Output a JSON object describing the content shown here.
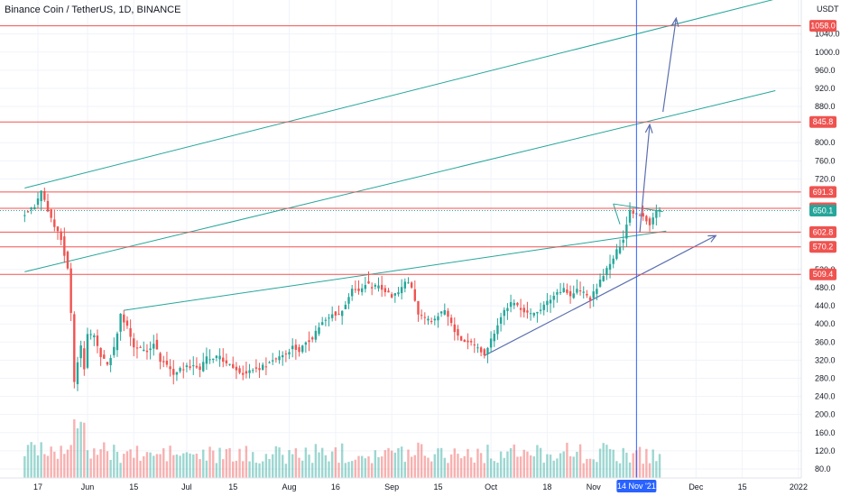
{
  "chart_data": {
    "type": "candlestick",
    "title": "Binance Coin / TetherUS, 1D, BINANCE",
    "yaxis_unit": "USDT",
    "ylim": [
      60,
      1115
    ],
    "price_ticks": [
      1040,
      1000,
      960,
      920,
      880,
      800,
      760,
      720,
      520,
      480,
      440,
      400,
      360,
      320,
      280,
      240,
      200,
      160,
      120,
      80
    ],
    "x_ticks": [
      {
        "day": 0,
        "label": "17"
      },
      {
        "day": 15,
        "label": "Jun"
      },
      {
        "day": 29,
        "label": "15"
      },
      {
        "day": 45,
        "label": "Jul"
      },
      {
        "day": 59,
        "label": "15"
      },
      {
        "day": 76,
        "label": "Aug"
      },
      {
        "day": 90,
        "label": "16"
      },
      {
        "day": 107,
        "label": "Sep"
      },
      {
        "day": 121,
        "label": "15"
      },
      {
        "day": 137,
        "label": "Oct"
      },
      {
        "day": 154,
        "label": "18"
      },
      {
        "day": 168,
        "label": "Nov"
      },
      {
        "day": 199,
        "label": "Dec"
      },
      {
        "day": 213,
        "label": "15"
      },
      {
        "day": 230,
        "label": "2022"
      }
    ],
    "current_date_label": "14 Nov '21",
    "current_day": 181,
    "horizontal_levels": [
      {
        "value": 1058.0,
        "label": "1058.0"
      },
      {
        "value": 845.8,
        "label": "845.8"
      },
      {
        "value": 691.3,
        "label": "691.3"
      },
      {
        "value": 655.1,
        "label": "655.1"
      },
      {
        "value": 602.8,
        "label": "602.8"
      },
      {
        "value": 570.2,
        "label": "570.2"
      },
      {
        "value": 509.4,
        "label": "509.4"
      }
    ],
    "last_price": {
      "value": 650.1,
      "label": "650.1"
    },
    "last_price_color": "#26a69a",
    "colors": {
      "up": "#26a69a",
      "down": "#ef5350",
      "level": "#ef5350",
      "trend": "#26a69a",
      "arrow": "#5b6fae",
      "vline": "#2962ff"
    },
    "price_anchors": [
      [
        -4,
        640
      ],
      [
        -2,
        650
      ],
      [
        0,
        660
      ],
      [
        2,
        690
      ],
      [
        4,
        650
      ],
      [
        6,
        610
      ],
      [
        8,
        590
      ],
      [
        10,
        520
      ],
      [
        11,
        420
      ],
      [
        12,
        270
      ],
      [
        13,
        320
      ],
      [
        14,
        350
      ],
      [
        15,
        300
      ],
      [
        16,
        380
      ],
      [
        18,
        370
      ],
      [
        20,
        330
      ],
      [
        22,
        310
      ],
      [
        24,
        345
      ],
      [
        26,
        420
      ],
      [
        28,
        395
      ],
      [
        30,
        350
      ],
      [
        32,
        345
      ],
      [
        34,
        340
      ],
      [
        36,
        360
      ],
      [
        38,
        320
      ],
      [
        40,
        310
      ],
      [
        42,
        290
      ],
      [
        44,
        300
      ],
      [
        46,
        305
      ],
      [
        48,
        310
      ],
      [
        50,
        300
      ],
      [
        52,
        325
      ],
      [
        54,
        320
      ],
      [
        56,
        330
      ],
      [
        58,
        310
      ],
      [
        60,
        305
      ],
      [
        62,
        295
      ],
      [
        64,
        290
      ],
      [
        66,
        300
      ],
      [
        68,
        302
      ],
      [
        70,
        310
      ],
      [
        72,
        320
      ],
      [
        74,
        330
      ],
      [
        76,
        335
      ],
      [
        78,
        350
      ],
      [
        80,
        340
      ],
      [
        82,
        360
      ],
      [
        84,
        370
      ],
      [
        86,
        395
      ],
      [
        88,
        410
      ],
      [
        90,
        425
      ],
      [
        92,
        420
      ],
      [
        94,
        440
      ],
      [
        96,
        480
      ],
      [
        98,
        470
      ],
      [
        100,
        490
      ],
      [
        102,
        480
      ],
      [
        104,
        485
      ],
      [
        106,
        475
      ],
      [
        108,
        460
      ],
      [
        110,
        470
      ],
      [
        112,
        495
      ],
      [
        114,
        480
      ],
      [
        116,
        420
      ],
      [
        118,
        410
      ],
      [
        120,
        405
      ],
      [
        122,
        420
      ],
      [
        124,
        430
      ],
      [
        126,
        400
      ],
      [
        128,
        370
      ],
      [
        130,
        360
      ],
      [
        132,
        355
      ],
      [
        134,
        345
      ],
      [
        136,
        335
      ],
      [
        138,
        365
      ],
      [
        140,
        400
      ],
      [
        142,
        430
      ],
      [
        144,
        445
      ],
      [
        146,
        440
      ],
      [
        148,
        430
      ],
      [
        150,
        420
      ],
      [
        152,
        430
      ],
      [
        154,
        440
      ],
      [
        156,
        455
      ],
      [
        158,
        470
      ],
      [
        160,
        480
      ],
      [
        162,
        460
      ],
      [
        164,
        475
      ],
      [
        166,
        470
      ],
      [
        168,
        455
      ],
      [
        170,
        480
      ],
      [
        172,
        510
      ],
      [
        174,
        530
      ],
      [
        176,
        560
      ],
      [
        178,
        590
      ],
      [
        180,
        650
      ],
      [
        182,
        645
      ],
      [
        184,
        640
      ],
      [
        186,
        620
      ],
      [
        188,
        650
      ]
    ],
    "volume_anchors": [
      [
        -4,
        100
      ],
      [
        0,
        120
      ],
      [
        6,
        110
      ],
      [
        8,
        150
      ],
      [
        10,
        180
      ],
      [
        11,
        200
      ],
      [
        12,
        220
      ],
      [
        13,
        180
      ],
      [
        14,
        160
      ],
      [
        15,
        140
      ],
      [
        16,
        120
      ],
      [
        18,
        110
      ],
      [
        22,
        100
      ],
      [
        24,
        95
      ],
      [
        26,
        110
      ],
      [
        28,
        100
      ],
      [
        30,
        95
      ],
      [
        34,
        90
      ],
      [
        38,
        98
      ],
      [
        40,
        100
      ],
      [
        44,
        92
      ],
      [
        46,
        95
      ],
      [
        50,
        90
      ],
      [
        54,
        92
      ],
      [
        58,
        90
      ],
      [
        62,
        92
      ],
      [
        66,
        95
      ],
      [
        70,
        92
      ],
      [
        74,
        95
      ],
      [
        78,
        95
      ],
      [
        82,
        98
      ],
      [
        86,
        100
      ],
      [
        90,
        105
      ],
      [
        94,
        100
      ],
      [
        98,
        102
      ],
      [
        102,
        100
      ],
      [
        106,
        98
      ],
      [
        110,
        100
      ],
      [
        114,
        115
      ],
      [
        116,
        125
      ],
      [
        118,
        110
      ],
      [
        122,
        100
      ],
      [
        126,
        105
      ],
      [
        130,
        100
      ],
      [
        134,
        98
      ],
      [
        138,
        96
      ],
      [
        142,
        100
      ],
      [
        146,
        98
      ],
      [
        150,
        98
      ],
      [
        154,
        100
      ],
      [
        156,
        110
      ],
      [
        158,
        120
      ],
      [
        160,
        105
      ],
      [
        164,
        98
      ],
      [
        168,
        98
      ],
      [
        172,
        102
      ],
      [
        176,
        100
      ],
      [
        180,
        98
      ],
      [
        184,
        95
      ],
      [
        188,
        92
      ]
    ],
    "trendlines": [
      {
        "from": [
          -4,
          700
        ],
        "to": [
          230,
          1130
        ]
      },
      {
        "from": [
          -4,
          515
        ],
        "to": [
          223,
          915
        ]
      },
      {
        "from": [
          26,
          430
        ],
        "to": [
          190,
          605
        ]
      }
    ],
    "triangle_lines": [
      {
        "from": [
          174,
          665
        ],
        "to": [
          189,
          648
        ]
      },
      {
        "from": [
          174,
          665
        ],
        "to": [
          176,
          620
        ]
      }
    ],
    "support_line": {
      "from": [
        135,
        330
      ],
      "to": [
        205,
        595
      ]
    },
    "arrows": [
      {
        "from": [
          182,
          602
        ],
        "to": [
          185,
          840
        ]
      },
      {
        "from": [
          189,
          868
        ],
        "to": [
          193,
          1075
        ]
      }
    ],
    "volume_max": 220
  }
}
